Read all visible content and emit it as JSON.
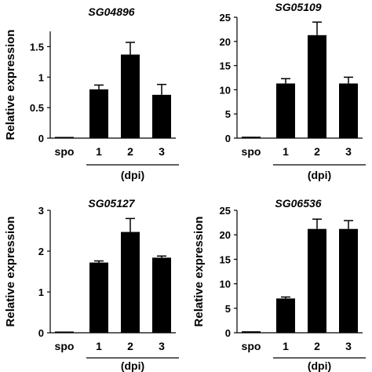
{
  "chart_data": [
    {
      "type": "bar",
      "title": "SG04896",
      "ylabel": "Relative expression",
      "group_label": "(dpi)",
      "categories": [
        "spo",
        "1",
        "2",
        "3"
      ],
      "values": [
        0.02,
        0.8,
        1.37,
        0.71
      ],
      "errors": [
        0,
        0.07,
        0.2,
        0.17
      ],
      "ylim": [
        0,
        1.75
      ],
      "yticks": [
        0,
        0.5,
        1,
        1.5
      ],
      "ytick_labels": [
        "0",
        "0.5",
        "1",
        "1.5"
      ]
    },
    {
      "type": "bar",
      "title": "SG05109",
      "ylabel": "",
      "group_label": "(dpi)",
      "categories": [
        "spo",
        "1",
        "2",
        "3"
      ],
      "values": [
        0.3,
        11.3,
        21.3,
        11.3
      ],
      "errors": [
        0,
        1.0,
        2.7,
        1.3
      ],
      "ylim": [
        0,
        25
      ],
      "yticks": [
        0,
        5,
        10,
        15,
        20,
        25
      ],
      "ytick_labels": [
        "0",
        "5",
        "10",
        "15",
        "20",
        "25"
      ]
    },
    {
      "type": "bar",
      "title": "SG05127",
      "ylabel": "Relative expression",
      "group_label": "(dpi)",
      "categories": [
        "spo",
        "1",
        "2",
        "3"
      ],
      "values": [
        0.03,
        1.72,
        2.47,
        1.84
      ],
      "errors": [
        0,
        0.04,
        0.33,
        0.04
      ],
      "ylim": [
        0,
        3
      ],
      "yticks": [
        0,
        1,
        2,
        3
      ],
      "ytick_labels": [
        "0",
        "1",
        "2",
        "3"
      ]
    },
    {
      "type": "bar",
      "title": "SG06536",
      "ylabel": "Relative expression",
      "group_label": "(dpi)",
      "categories": [
        "spo",
        "1",
        "2",
        "3"
      ],
      "values": [
        0.3,
        7.0,
        21.2,
        21.2
      ],
      "errors": [
        0,
        0.3,
        2.0,
        1.7
      ],
      "ylim": [
        0,
        25
      ],
      "yticks": [
        0,
        5,
        10,
        15,
        20,
        25
      ],
      "ytick_labels": [
        "0",
        "5",
        "10",
        "15",
        "20",
        "25"
      ]
    }
  ],
  "colors": {
    "bar": "#000000",
    "axis": "#000000"
  }
}
